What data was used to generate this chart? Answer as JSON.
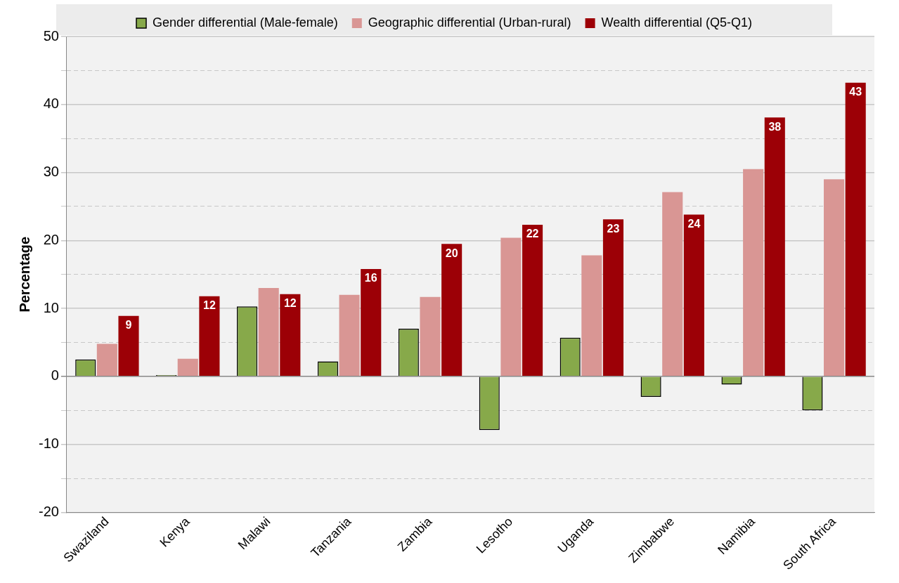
{
  "chart_data": {
    "type": "bar",
    "ylabel": "Percentage",
    "categories": [
      "Swaziland",
      "Kenya",
      "Malawi",
      "Tanzania",
      "Zambia",
      "Lesotho",
      "Uganda",
      "Zimbabwe",
      "Namibia",
      "South Africa"
    ],
    "series": [
      {
        "name": "Gender differential (Male-female)",
        "color": "#87a94a",
        "values": [
          2.5,
          0.2,
          10.3,
          2.2,
          7.0,
          -7.9,
          5.7,
          -3.0,
          -1.2,
          -5.0
        ]
      },
      {
        "name": "Geographic differential (Urban-rural)",
        "color": "#d99694",
        "values": [
          4.8,
          2.6,
          13.0,
          12.0,
          11.7,
          20.4,
          17.8,
          27.1,
          30.5,
          29.0
        ]
      },
      {
        "name": "Wealth differential (Q5-Q1)",
        "color": "#9c0006",
        "values": [
          8.9,
          11.8,
          12.1,
          15.8,
          19.5,
          22.3,
          23.1,
          23.8,
          38.1,
          43.2
        ],
        "value_labels": [
          "9",
          "12",
          "12",
          "16",
          "20",
          "22",
          "23",
          "24",
          "38",
          "43"
        ]
      }
    ],
    "ylim": [
      -20,
      50
    ],
    "yticks": [
      -20,
      {
        "value": -15,
        "label": null
      },
      -10,
      {
        "value": -5,
        "label": null
      },
      0,
      {
        "value": 5,
        "label": null
      },
      10,
      {
        "value": 15,
        "label": null
      },
      20,
      {
        "value": 25,
        "label": null
      },
      30,
      {
        "value": 35,
        "label": null
      },
      40,
      {
        "value": 45,
        "label": null
      },
      50
    ],
    "grid": "y",
    "legend": "top"
  }
}
